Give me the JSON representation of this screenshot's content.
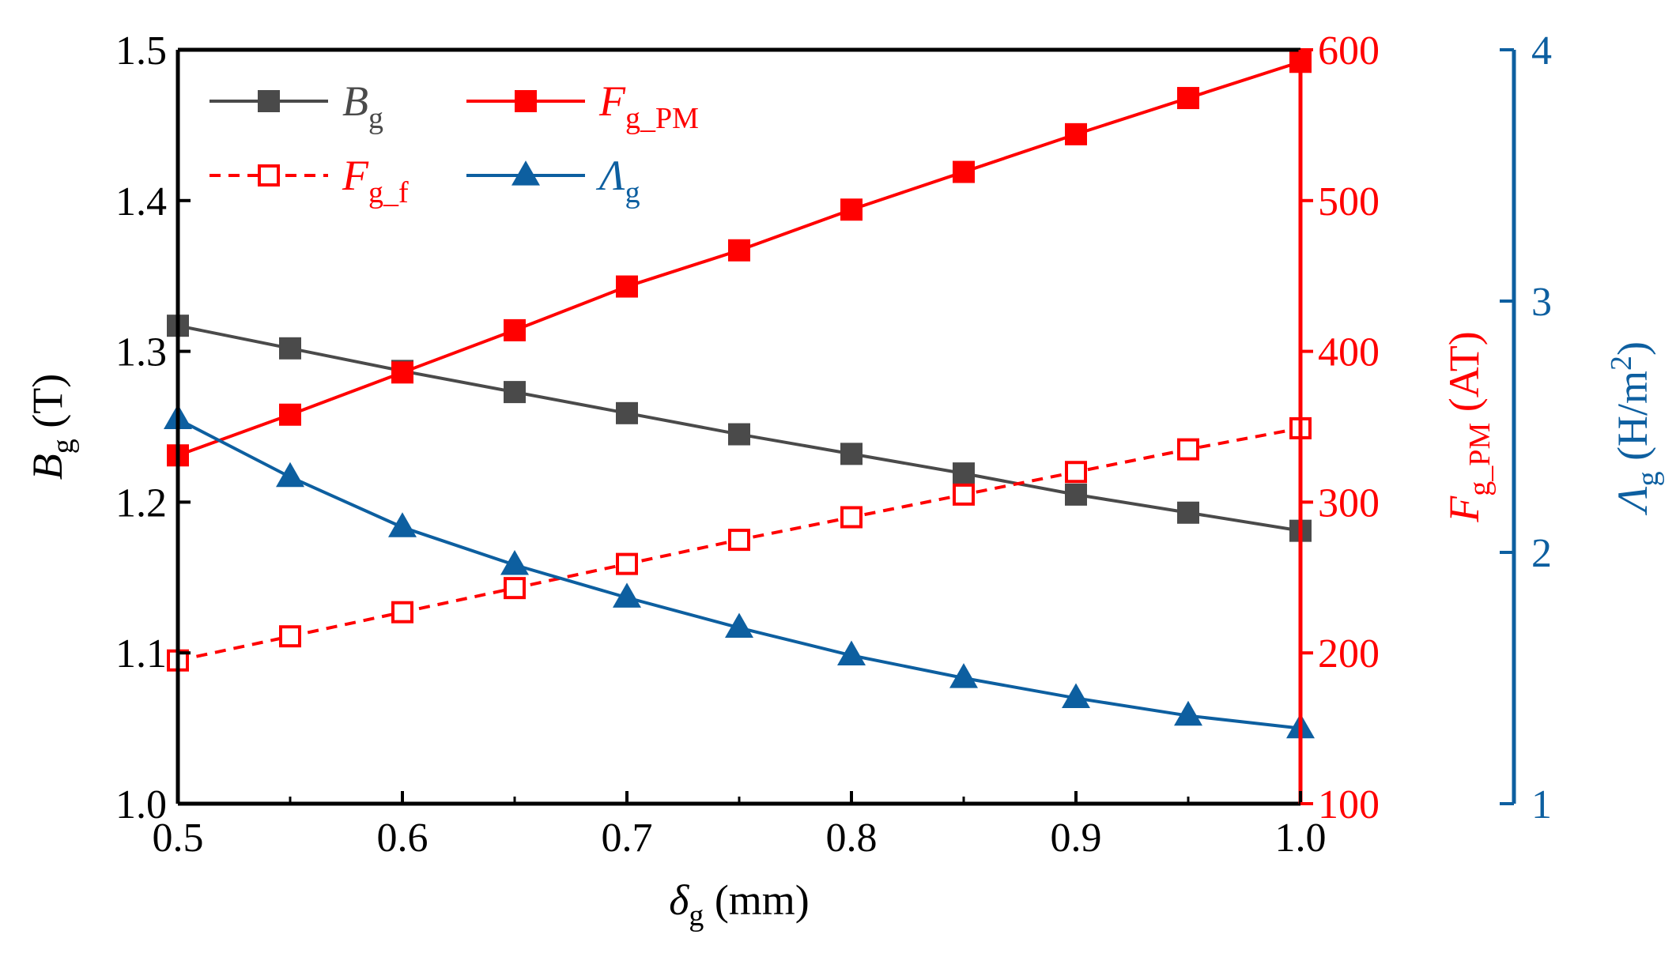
{
  "chart_data": {
    "type": "line",
    "x": [
      0.5,
      0.55,
      0.6,
      0.65,
      0.7,
      0.75,
      0.8,
      0.85,
      0.9,
      0.95,
      1.0
    ],
    "xlim": [
      0.5,
      1.0
    ],
    "x_ticks": [
      "0.5",
      "0.6",
      "0.7",
      "0.8",
      "0.9",
      "1.0"
    ],
    "xlabel": {
      "main": "δ",
      "sub": "g",
      "unit": " (mm)"
    },
    "axes": {
      "left": {
        "ylim": [
          1.0,
          1.5
        ],
        "ticks": [
          "1.0",
          "1.1",
          "1.2",
          "1.3",
          "1.4",
          "1.5"
        ],
        "label": {
          "main": "B",
          "sub": "g",
          "unit": " (T)"
        },
        "color": "#000000"
      },
      "right": {
        "ylim": [
          100,
          600
        ],
        "ticks": [
          "100",
          "200",
          "300",
          "400",
          "500",
          "600"
        ],
        "label": {
          "main": "F",
          "sub": "g_PM",
          "unit": " (AT)"
        },
        "color": "#ff0000"
      },
      "right2": {
        "ylim": [
          1,
          4
        ],
        "ticks": [
          "1",
          "2",
          "3",
          "4"
        ],
        "label": {
          "main": "Λ",
          "sub": "g",
          "unit": " (H/m",
          "sup": "2",
          "close": ")"
        },
        "color": "#0d5fa0"
      }
    },
    "series": [
      {
        "name": "B_g",
        "label_main": "B",
        "label_sub": "g",
        "axis": "left",
        "color": "#4a4a4a",
        "marker": "square",
        "dash": false,
        "values": [
          1.317,
          1.302,
          1.287,
          1.273,
          1.259,
          1.245,
          1.232,
          1.219,
          1.205,
          1.193,
          1.181
        ]
      },
      {
        "name": "F_g_PM",
        "label_main": "F",
        "label_sub": "g_PM",
        "axis": "right",
        "color": "#ff0000",
        "marker": "square",
        "dash": false,
        "values": [
          331,
          358,
          386,
          414,
          443,
          467,
          494,
          519,
          544,
          568,
          592
        ]
      },
      {
        "name": "F_g_f",
        "label_main": "F",
        "label_sub": "g_f",
        "axis": "right",
        "color": "#ff0000",
        "marker": "square-open",
        "dash": true,
        "values": [
          195,
          211,
          227,
          243,
          259,
          275,
          290,
          305,
          320,
          335,
          349
        ]
      },
      {
        "name": "Λ_g",
        "label_main": "Λ",
        "label_sub": "g",
        "axis": "right2",
        "color": "#0d5fa0",
        "marker": "triangle",
        "dash": false,
        "values": [
          2.53,
          2.3,
          2.1,
          1.95,
          1.82,
          1.7,
          1.59,
          1.5,
          1.42,
          1.35,
          1.3
        ]
      }
    ],
    "legend_position": "top-left"
  }
}
